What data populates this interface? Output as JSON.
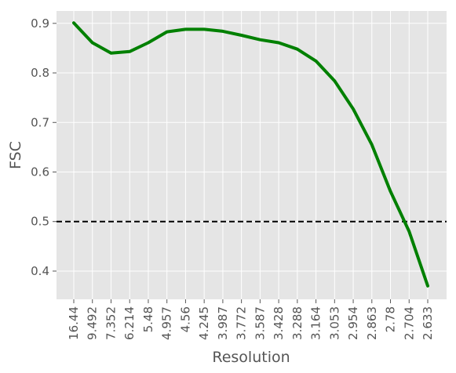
{
  "chart_data": {
    "type": "line",
    "xlabel": "Resolution",
    "ylabel": "FSC",
    "categories": [
      "16.44",
      "9.492",
      "7.352",
      "6.214",
      "5.48",
      "4.957",
      "4.56",
      "4.245",
      "3.987",
      "3.772",
      "3.587",
      "3.428",
      "3.288",
      "3.164",
      "3.053",
      "2.954",
      "2.863",
      "2.78",
      "2.704",
      "2.633"
    ],
    "series": [
      {
        "values": [
          0.901,
          0.861,
          0.84,
          0.843,
          0.861,
          0.883,
          0.888,
          0.888,
          0.884,
          0.876,
          0.867,
          0.861,
          0.848,
          0.824,
          0.784,
          0.727,
          0.655,
          0.561,
          0.48,
          0.37
        ],
        "color": "#008000"
      }
    ],
    "threshold": {
      "value": 0.5,
      "style": "dashed",
      "color": "#000000"
    },
    "ylim": [
      0.343,
      0.925
    ],
    "yticks": [
      0.4,
      0.5,
      0.6,
      0.7,
      0.8,
      0.9
    ],
    "grid": true,
    "background": "#e5e5e5",
    "grid_color": "#ffffff"
  }
}
